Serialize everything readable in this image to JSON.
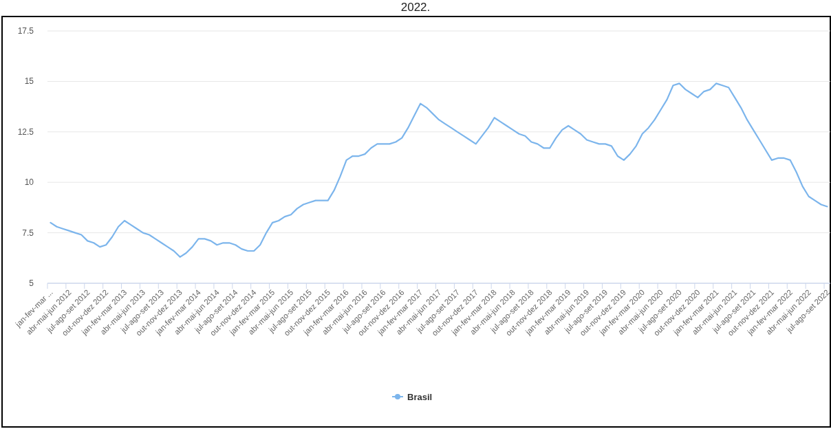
{
  "chart_data": {
    "type": "line",
    "title": "2022.",
    "categories": [
      "jan-fev-mar ...",
      null,
      null,
      "abr-mai-jun 2012",
      null,
      null,
      "jul-ago-set 2012",
      null,
      null,
      "out-nov-dez 2012",
      null,
      null,
      "jan-fev-mar 2013",
      null,
      null,
      "abr-mai-jun 2013",
      null,
      null,
      "jul-ago-set 2013",
      null,
      null,
      "out-nov-dez 2013",
      null,
      null,
      "jan-fev-mar 2014",
      null,
      null,
      "abr-mai-jun 2014",
      null,
      null,
      "jul-ago-set 2014",
      null,
      null,
      "out-nov-dez 2014",
      null,
      null,
      "jan-fev-mar 2015",
      null,
      null,
      "abr-mai-jun 2015",
      null,
      null,
      "jul-ago-set 2015",
      null,
      null,
      "out-nov-dez 2015",
      null,
      null,
      "jan-fev-mar 2016",
      null,
      null,
      "abr-mai-jun 2016",
      null,
      null,
      "jul-ago-set 2016",
      null,
      null,
      "out-nov-dez 2016",
      null,
      null,
      "jan-fev-mar 2017",
      null,
      null,
      "abr-mai-jun 2017",
      null,
      null,
      "jul-ago-set 2017",
      null,
      null,
      "out-nov-dez 2017",
      null,
      null,
      "jan-fev-mar 2018",
      null,
      null,
      "abr-mai-jun 2018",
      null,
      null,
      "jul-ago-set 2018",
      null,
      null,
      "out-nov-dez 2018",
      null,
      null,
      "jan-fev-mar 2019",
      null,
      null,
      "abr-mai-jun 2019",
      null,
      null,
      "jul-ago-set 2019",
      null,
      null,
      "out-nov-dez 2019",
      null,
      null,
      "jan-fev-mar 2020",
      null,
      null,
      "abr-mai-jun 2020",
      null,
      null,
      "jul-ago-set 2020",
      null,
      null,
      "out-nov-dez 2020",
      null,
      null,
      "jan-fev-mar 2021",
      null,
      null,
      "abr-mai-jun 2021",
      null,
      null,
      "jul-ago-set 2021",
      null,
      null,
      "out-nov-dez 2021",
      null,
      null,
      "jan-fev-mar 2022",
      null,
      null,
      "abr-mai-jun 2022",
      null,
      null,
      "jul-ago-set 2022"
    ],
    "series": [
      {
        "name": "Brasil",
        "color": "#7cb5ec",
        "values": [
          8.0,
          7.8,
          7.7,
          7.6,
          7.5,
          7.4,
          7.1,
          7.0,
          6.8,
          6.9,
          7.3,
          7.8,
          8.1,
          7.9,
          7.7,
          7.5,
          7.4,
          7.2,
          7.0,
          6.8,
          6.6,
          6.3,
          6.5,
          6.8,
          7.2,
          7.2,
          7.1,
          6.9,
          7.0,
          7.0,
          6.9,
          6.7,
          6.6,
          6.6,
          6.9,
          7.5,
          8.0,
          8.1,
          8.3,
          8.4,
          8.7,
          8.9,
          9.0,
          9.1,
          9.1,
          9.1,
          9.6,
          10.3,
          11.1,
          11.3,
          11.3,
          11.4,
          11.7,
          11.9,
          11.9,
          11.9,
          12.0,
          12.2,
          12.7,
          13.3,
          13.9,
          13.7,
          13.4,
          13.1,
          12.9,
          12.7,
          12.5,
          12.3,
          12.1,
          11.9,
          12.3,
          12.7,
          13.2,
          13.0,
          12.8,
          12.6,
          12.4,
          12.3,
          12.0,
          11.9,
          11.7,
          11.7,
          12.2,
          12.6,
          12.8,
          12.6,
          12.4,
          12.1,
          12.0,
          11.9,
          11.9,
          11.8,
          11.3,
          11.1,
          11.4,
          11.8,
          12.4,
          12.7,
          13.1,
          13.6,
          14.1,
          14.8,
          14.9,
          14.6,
          14.4,
          14.2,
          14.5,
          14.6,
          14.9,
          14.8,
          14.7,
          14.2,
          13.7,
          13.1,
          12.6,
          12.1,
          11.6,
          11.1,
          11.2,
          11.2,
          11.1,
          10.5,
          9.8,
          9.3,
          9.1,
          8.9,
          8.8
        ]
      }
    ],
    "ylim": [
      5,
      17.5
    ],
    "yticks": [
      5,
      7.5,
      10,
      12.5,
      15,
      17.5
    ],
    "grid": "y",
    "legend": "bottom"
  }
}
